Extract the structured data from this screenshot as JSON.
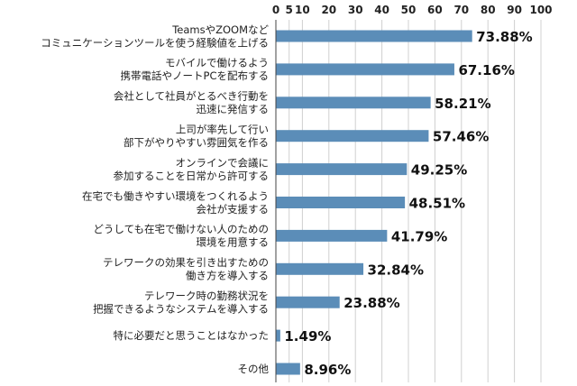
{
  "chart_data": {
    "type": "bar",
    "orientation": "horizontal",
    "categories": [
      [
        "TeamsやZOOMなど",
        "コミュニケーションツールを使う経験値を上げる"
      ],
      [
        "モバイルで働けるよう",
        "携帯電話やノートPCを配布する"
      ],
      [
        "会社として社員がとるべき行動を",
        "迅速に発信する"
      ],
      [
        "上司が率先して行い",
        "部下がやりやすい雰囲気を作る"
      ],
      [
        "オンラインで会議に",
        "参加することを日常から許可する"
      ],
      [
        "在宅でも働きやすい環境をつくれるよう",
        "会社が支援する"
      ],
      [
        "どうしても在宅で働けない人のための",
        "環境を用意する"
      ],
      [
        "テレワークの効果を引き出すための",
        "働き方を導入する"
      ],
      [
        "テレワーク時の勤務状況を",
        "把握できるようなシステムを導入する"
      ],
      [
        "特に必要だと思うことはなかった"
      ],
      [
        "その他"
      ]
    ],
    "values": [
      73.88,
      67.16,
      58.21,
      57.46,
      49.25,
      48.51,
      41.79,
      32.84,
      23.88,
      1.49,
      8.96
    ],
    "value_labels": [
      "73.88%",
      "67.16%",
      "58.21%",
      "57.46%",
      "49.25%",
      "48.51%",
      "41.79%",
      "32.84%",
      "23.88%",
      "1.49%",
      "8.96%"
    ],
    "xticks": [
      "0",
      "5",
      "10",
      "20",
      "30",
      "40",
      "50",
      "60",
      "70",
      "80",
      "90",
      "100"
    ],
    "xtick_values": [
      0,
      5,
      10,
      20,
      30,
      40,
      50,
      60,
      70,
      80,
      90,
      100
    ],
    "xlim": [
      0,
      100
    ],
    "grid": true,
    "bar_color": "#5b8db8"
  }
}
